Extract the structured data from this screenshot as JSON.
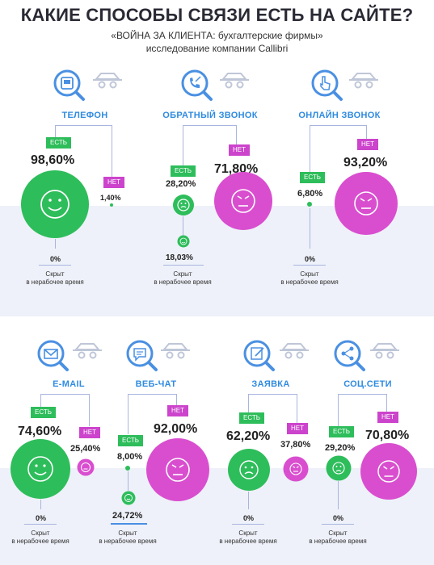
{
  "header": {
    "title": "КАКИЕ СПОСОБЫ СВЯЗИ ЕСТЬ НА САЙТЕ?",
    "subtitle": "«ВОЙНА ЗА КЛИЕНТА: бухгалтерские фирмы»",
    "source": "исследование компании Callibri"
  },
  "common": {
    "yes": "ЕСТЬ",
    "no": "НЕТ",
    "hidden_line1": "Скрыт",
    "hidden_line2": "в нерабочее время"
  },
  "colors": {
    "yes_green": "#2ebd5b",
    "no_magenta": "#cc44cc",
    "label_blue": "#2f8be0",
    "band": "#eef1f9"
  },
  "channels": [
    {
      "name": "ТЕЛЕФОН",
      "icon": "phone-icon",
      "yes": "98,60%",
      "no": "1,40%",
      "hidden": "0%",
      "yes_value": 98.6,
      "no_value": 1.4,
      "hidden_value": 0
    },
    {
      "name": "ОБРАТНЫЙ ЗВОНОК",
      "icon": "callback-icon",
      "yes": "28,20%",
      "no": "71,80%",
      "hidden": "18,03%",
      "yes_value": 28.2,
      "no_value": 71.8,
      "hidden_value": 18.03
    },
    {
      "name": "ОНЛАЙН ЗВОНОК",
      "icon": "online-call-icon",
      "yes": "6,80%",
      "no": "93,20%",
      "hidden": "0%",
      "yes_value": 6.8,
      "no_value": 93.2,
      "hidden_value": 0
    },
    {
      "name": "E-MAIL",
      "icon": "email-icon",
      "yes": "74,60%",
      "no": "25,40%",
      "hidden": "0%",
      "yes_value": 74.6,
      "no_value": 25.4,
      "hidden_value": 0
    },
    {
      "name": "ВЕБ-ЧАТ",
      "icon": "chat-icon",
      "yes": "8,00%",
      "no": "92,00%",
      "hidden": "24,72%",
      "yes_value": 8.0,
      "no_value": 92.0,
      "hidden_value": 24.72
    },
    {
      "name": "ЗАЯВКА",
      "icon": "form-icon",
      "yes": "62,20%",
      "no": "37,80%",
      "hidden": "0%",
      "yes_value": 62.2,
      "no_value": 37.8,
      "hidden_value": 0
    },
    {
      "name": "СОЦ.СЕТИ",
      "icon": "social-share-icon",
      "yes": "29,20%",
      "no": "70,80%",
      "hidden": "0%",
      "yes_value": 29.2,
      "no_value": 70.8,
      "hidden_value": 0
    }
  ]
}
